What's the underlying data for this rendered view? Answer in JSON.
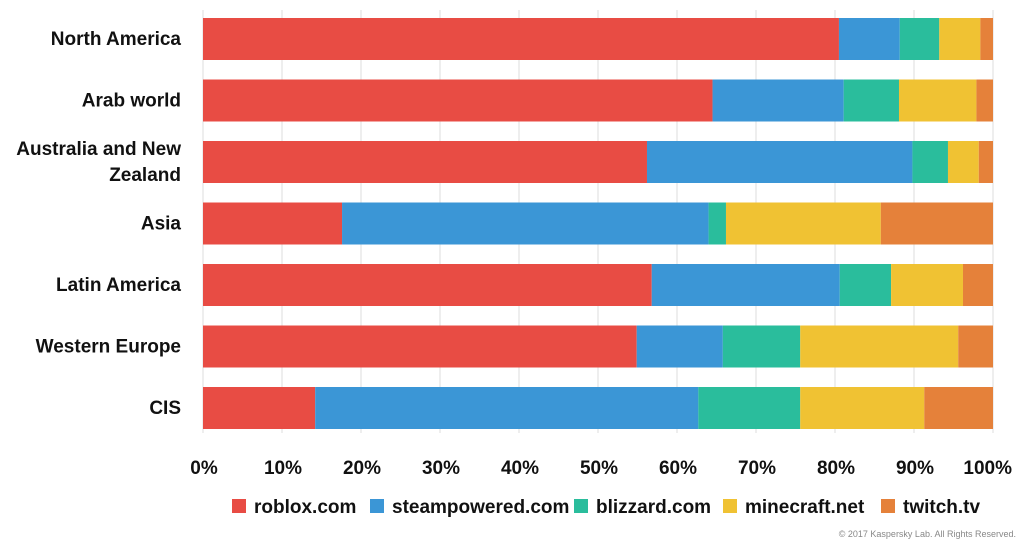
{
  "chart_data": {
    "type": "bar",
    "orientation": "horizontal",
    "stacked": true,
    "categories": [
      "North America",
      "Arab world",
      "Australia and New Zealand",
      "Asia",
      "Latin America",
      "Western Europe",
      "CIS"
    ],
    "series": [
      {
        "name": "roblox.com",
        "color": "#e84c44",
        "values": [
          80.5,
          64.5,
          56.2,
          17.6,
          56.8,
          54.9,
          14.2
        ]
      },
      {
        "name": "steampowered.com",
        "color": "#3b96d6",
        "values": [
          7.7,
          16.6,
          33.6,
          46.4,
          23.8,
          10.9,
          48.5
        ]
      },
      {
        "name": "blizzard.com",
        "color": "#2abd9c",
        "values": [
          5.0,
          7.0,
          4.5,
          2.2,
          6.5,
          9.8,
          12.9
        ]
      },
      {
        "name": "minecraft.net",
        "color": "#f0c233",
        "values": [
          5.2,
          9.8,
          3.9,
          19.6,
          9.1,
          20.0,
          15.7
        ]
      },
      {
        "name": "twitch.tv",
        "color": "#e5813a",
        "values": [
          1.6,
          2.1,
          1.8,
          14.2,
          3.8,
          4.4,
          8.7
        ]
      }
    ],
    "xlim": [
      0,
      100
    ],
    "x_ticks": [
      "0%",
      "10%",
      "20%",
      "30%",
      "40%",
      "50%",
      "60%",
      "70%",
      "80%",
      "90%",
      "100%"
    ],
    "grid": true,
    "legend_position": "bottom"
  },
  "footer": {
    "copyright": "© 2017 Kaspersky Lab. All Rights Reserved."
  }
}
